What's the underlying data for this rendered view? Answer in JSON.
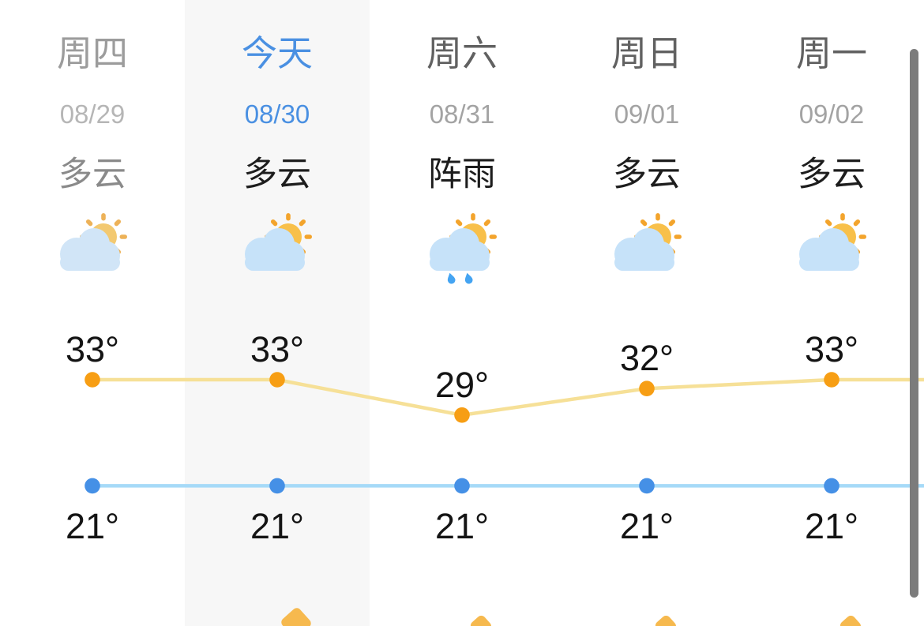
{
  "app": {
    "title": "5-day weather forecast"
  },
  "forecast": {
    "days": [
      {
        "day": "周四",
        "date": "08/29",
        "condition": "多云",
        "icon": "partly-cloudy-icon",
        "high": 33,
        "low": 21,
        "state": "past"
      },
      {
        "day": "今天",
        "date": "08/30",
        "condition": "多云",
        "icon": "partly-cloudy-icon",
        "high": 33,
        "low": 21,
        "state": "today"
      },
      {
        "day": "周六",
        "date": "08/31",
        "condition": "阵雨",
        "icon": "sun-shower-icon",
        "high": 29,
        "low": 21,
        "state": "future"
      },
      {
        "day": "周日",
        "date": "09/01",
        "condition": "多云",
        "icon": "partly-cloudy-icon",
        "high": 32,
        "low": 21,
        "state": "future"
      },
      {
        "day": "周一",
        "date": "09/02",
        "condition": "多云",
        "icon": "partly-cloudy-icon",
        "high": 33,
        "low": 21,
        "state": "future"
      }
    ]
  },
  "chart_data": {
    "type": "line",
    "categories": [
      "周四 08/29",
      "今天 08/30",
      "周六 08/31",
      "周日 09/01",
      "周一 09/02"
    ],
    "series": [
      {
        "name": "high-temperature",
        "values": [
          33,
          33,
          29,
          32,
          33
        ]
      },
      {
        "name": "low-temperature",
        "values": [
          21,
          21,
          21,
          21,
          21
        ]
      }
    ],
    "unit": "°",
    "ylim": [
      21,
      33
    ],
    "grid": false,
    "legend": "none",
    "point_labels_high": [
      "33°",
      "33°",
      "29°",
      "32°",
      "33°"
    ],
    "point_labels_low": [
      "21°",
      "21°",
      "21°",
      "21°",
      "21°"
    ]
  },
  "colors": {
    "today_highlight_bg": "#f7f7f7",
    "today_accent_blue": "#4a90e2",
    "high_dot": "#f79e14",
    "high_line": "#f6e097",
    "low_dot": "#4590e6",
    "low_line": "#a6daf8",
    "sun_body": "#f8c04a",
    "sun_rays": "#f3a42c",
    "cloud": "#c6e2f9",
    "raindrop": "#44a4f2",
    "scrollbar": "#7c7c7c",
    "peek_tip": "#f6b94e"
  },
  "bottom_peek_icons": {
    "count": 4,
    "on_columns": [
      1,
      2,
      3,
      4
    ]
  },
  "scrollbar": {
    "orientation": "vertical"
  }
}
